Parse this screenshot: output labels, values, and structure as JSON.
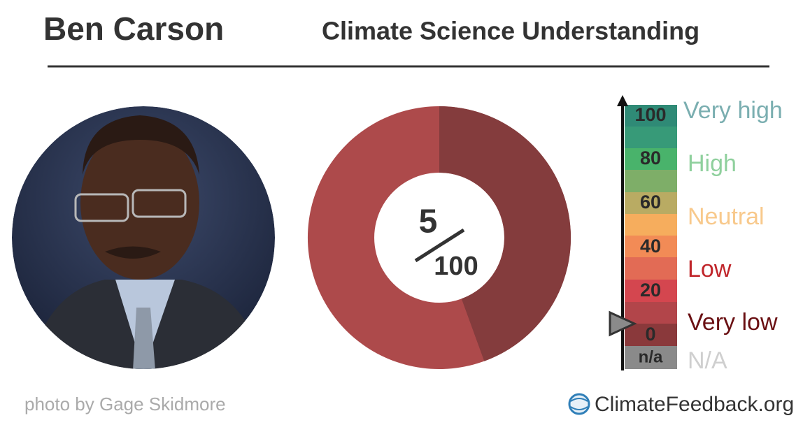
{
  "header": {
    "name": "Ben Carson",
    "title": "Climate Science Understanding"
  },
  "score": {
    "value": 5,
    "max": 100
  },
  "scale": {
    "ticks": [
      100,
      80,
      60,
      40,
      20,
      0,
      "n/a"
    ],
    "levels": [
      "Very high",
      "High",
      "Neutral",
      "Low",
      "Very low",
      "N/A"
    ]
  },
  "footer": {
    "credit": "photo by Gage Skidmore",
    "site": "ClimateFeedback.org"
  }
}
